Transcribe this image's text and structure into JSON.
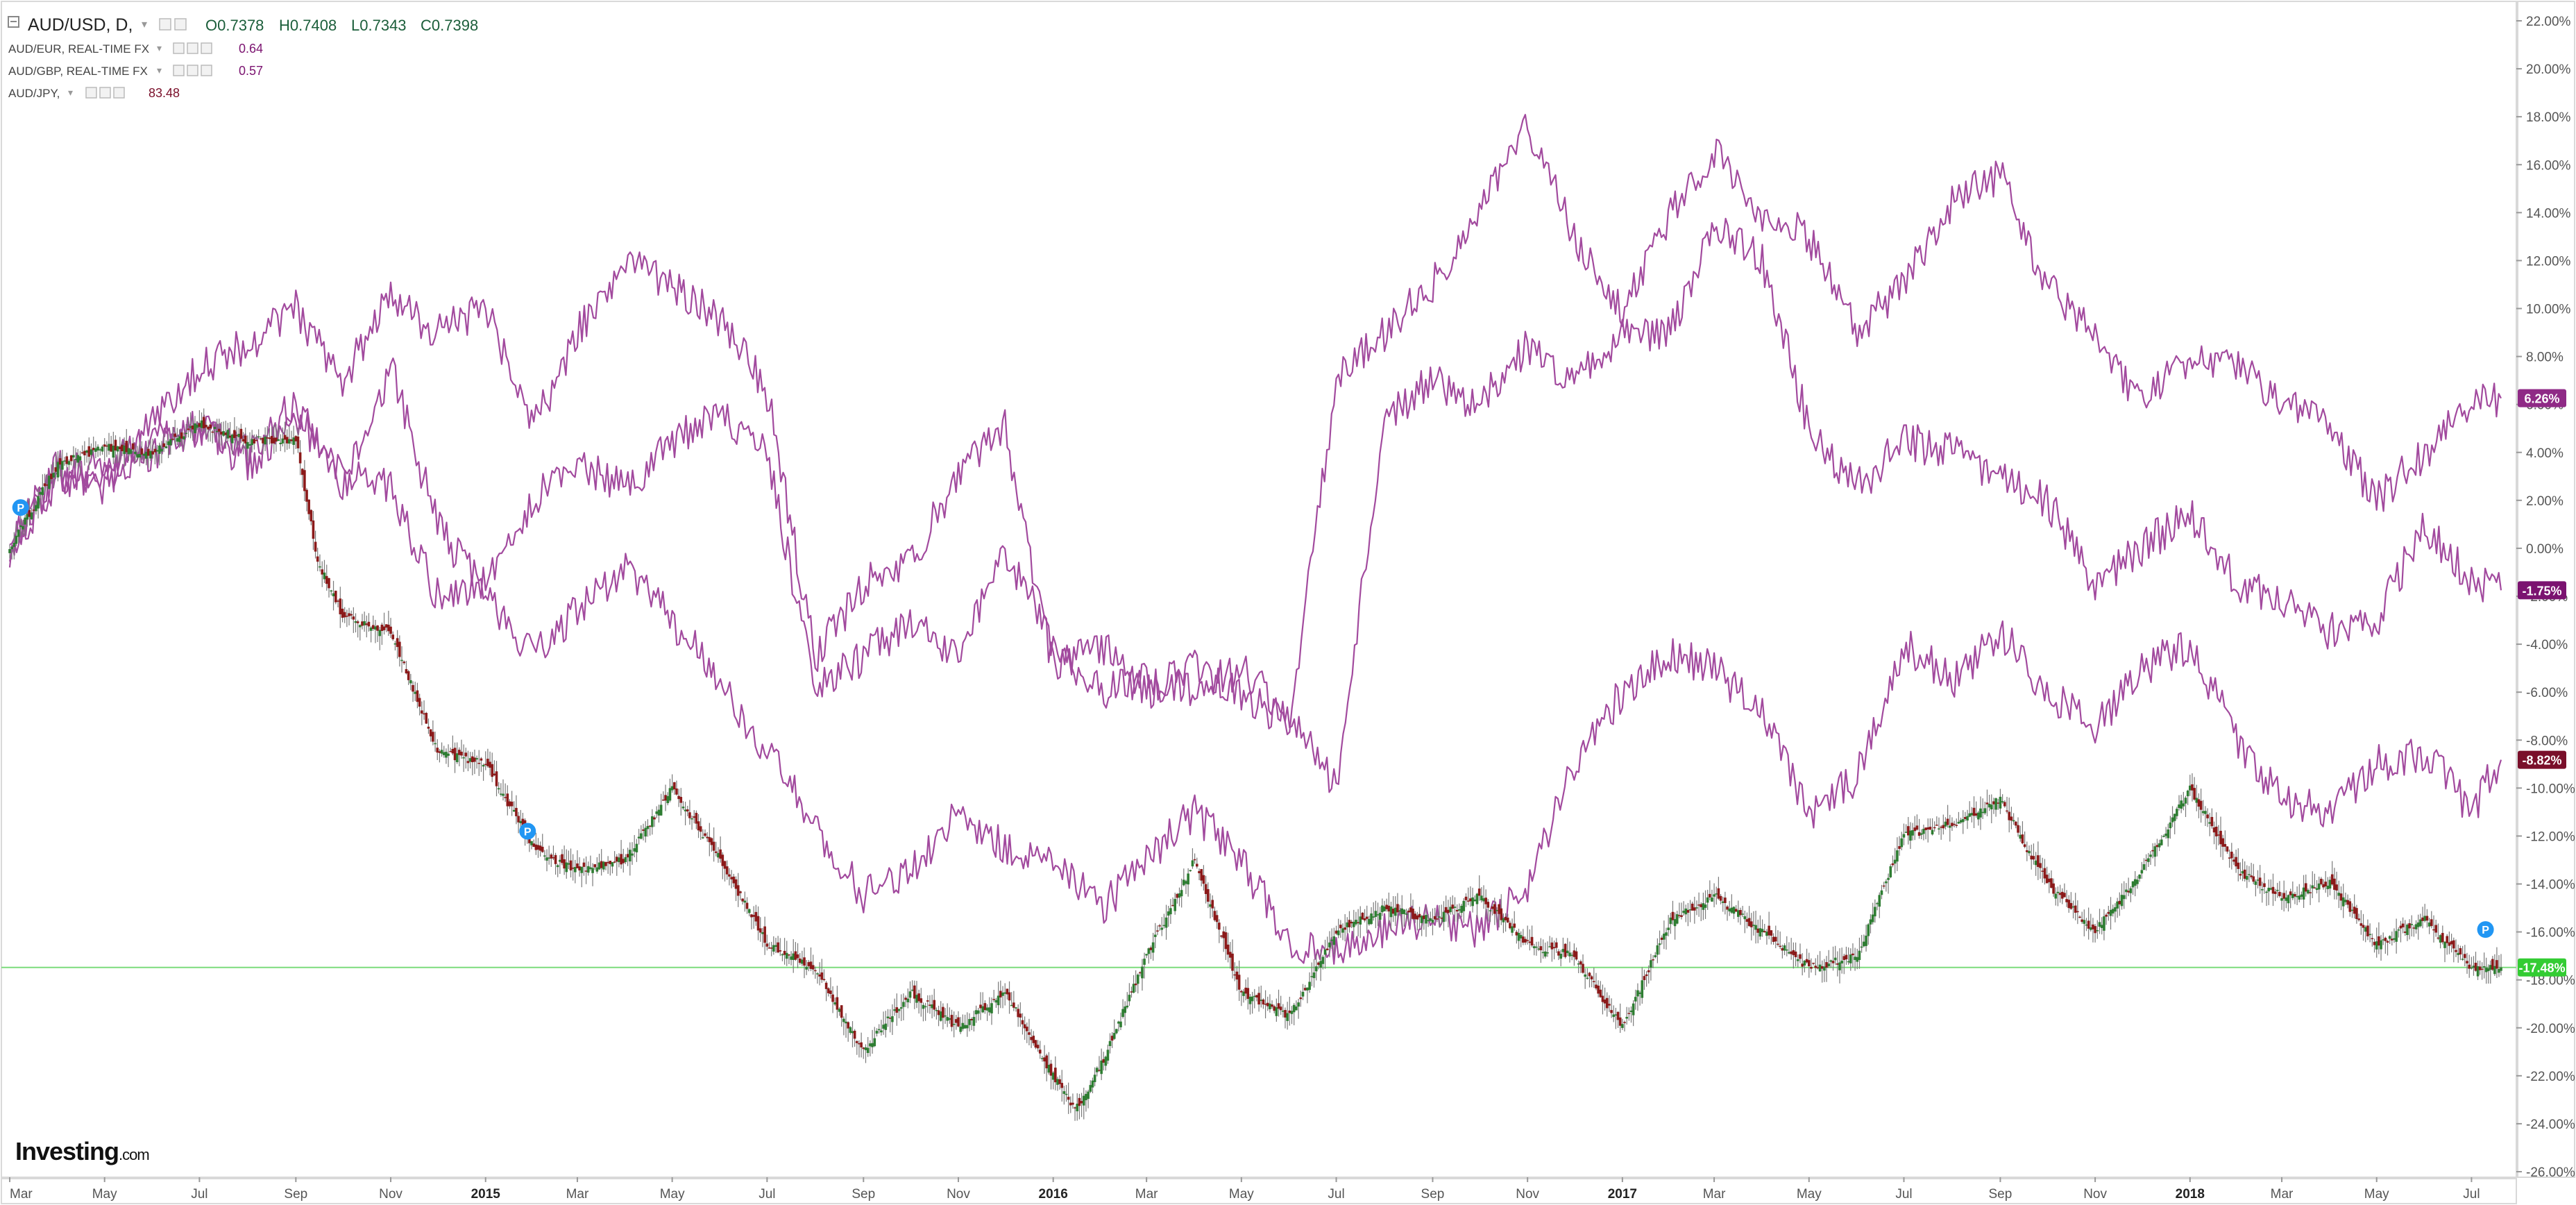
{
  "legend": {
    "main": {
      "symbol": "AUD/USD, D,",
      "open_label": "O",
      "open": "0.7378",
      "high_label": "H",
      "high": "0.7408",
      "low_label": "L",
      "low": "0.7343",
      "close_label": "C",
      "close": "0.7398"
    },
    "compare": [
      {
        "name": "AUD/EUR, REAL-TIME FX",
        "value": "0.64"
      },
      {
        "name": "AUD/GBP, REAL-TIME FX",
        "value": "0.57"
      },
      {
        "name": "AUD/JPY,",
        "value": "83.48"
      }
    ]
  },
  "logo": {
    "brand": "Investing",
    "suffix": ".com"
  },
  "marker_label": "P",
  "colors": {
    "up_candle": "#2e7d32",
    "down_candle": "#8b1a1a",
    "compare_line": "#a24a9e",
    "last_price_line": "#7cdc7c",
    "badge_green": "#33cc33",
    "badge_purple": "#7b1370",
    "badge_purple_light": "#8f2a86",
    "badge_maroon": "#7a0f2a",
    "axis_text": "#555555"
  },
  "chart_data": {
    "type": "line",
    "title": "",
    "percent_scale": true,
    "ylim": [
      -26,
      22
    ],
    "yticks": [
      "22.00%",
      "20.00%",
      "18.00%",
      "16.00%",
      "14.00%",
      "12.00%",
      "10.00%",
      "8.00%",
      "6.00%",
      "4.00%",
      "2.00%",
      "0.00%",
      "-2.00%",
      "-4.00%",
      "-6.00%",
      "-8.00%",
      "-10.00%",
      "-12.00%",
      "-14.00%",
      "-16.00%",
      "-18.00%",
      "-20.00%",
      "-22.00%",
      "-24.00%",
      "-26.00%"
    ],
    "xticks": [
      "Mar",
      "May",
      "Jul",
      "Sep",
      "Nov",
      "2015",
      "Mar",
      "May",
      "Jul",
      "Sep",
      "Nov",
      "2016",
      "Mar",
      "May",
      "Jul",
      "Sep",
      "Nov",
      "2017",
      "Mar",
      "May",
      "Jul",
      "Sep",
      "Nov",
      "2018",
      "Mar",
      "May",
      "Jul"
    ],
    "xrange": [
      "2014-03-01",
      "2018-07-20"
    ],
    "grid": false,
    "series": [
      {
        "name": "AUD/USD",
        "style": "candlestick",
        "last_label": "-17.48%",
        "x": [
          "2014-03-01",
          "2014-04-01",
          "2014-05-01",
          "2014-06-01",
          "2014-07-01",
          "2014-08-01",
          "2014-09-01",
          "2014-09-15",
          "2014-10-01",
          "2014-11-01",
          "2014-12-01",
          "2015-01-01",
          "2015-02-01",
          "2015-03-01",
          "2015-04-01",
          "2015-05-01",
          "2015-06-01",
          "2015-07-01",
          "2015-08-01",
          "2015-09-01",
          "2015-10-01",
          "2015-11-01",
          "2015-12-01",
          "2016-01-01",
          "2016-01-15",
          "2016-02-01",
          "2016-03-01",
          "2016-04-01",
          "2016-05-01",
          "2016-06-01",
          "2016-07-01",
          "2016-08-01",
          "2016-09-01",
          "2016-10-01",
          "2016-11-01",
          "2016-12-01",
          "2017-01-01",
          "2017-02-01",
          "2017-03-01",
          "2017-04-01",
          "2017-05-01",
          "2017-06-01",
          "2017-07-01",
          "2017-08-01",
          "2017-09-01",
          "2017-10-01",
          "2017-11-01",
          "2017-12-01",
          "2018-01-01",
          "2018-02-01",
          "2018-03-01",
          "2018-04-01",
          "2018-05-01",
          "2018-06-01",
          "2018-07-01",
          "2018-07-20"
        ],
        "values": [
          0.0,
          3.5,
          4.2,
          4.0,
          5.2,
          4.5,
          4.5,
          -0.5,
          -2.8,
          -3.5,
          -8.5,
          -9.0,
          -12.5,
          -13.5,
          -13.0,
          -10.0,
          -13.0,
          -16.5,
          -17.5,
          -21.0,
          -18.5,
          -20.0,
          -18.5,
          -22.0,
          -23.5,
          -21.5,
          -17.0,
          -13.0,
          -18.5,
          -19.5,
          -16.0,
          -15.0,
          -15.5,
          -14.5,
          -16.5,
          -17.0,
          -20.0,
          -15.5,
          -14.5,
          -16.0,
          -17.5,
          -17.0,
          -12.0,
          -11.5,
          -10.5,
          -14.0,
          -16.0,
          -13.5,
          -10.0,
          -13.5,
          -14.5,
          -14.0,
          -16.5,
          -15.5,
          -17.5,
          -17.48
        ]
      },
      {
        "name": "AUD/EUR",
        "style": "line",
        "last_label": "6.26%",
        "x": [
          "2014-03-01",
          "2014-04-01",
          "2014-05-01",
          "2014-06-01",
          "2014-07-01",
          "2014-08-01",
          "2014-09-01",
          "2014-10-01",
          "2014-11-01",
          "2014-12-01",
          "2015-01-01",
          "2015-02-01",
          "2015-03-01",
          "2015-04-01",
          "2015-05-01",
          "2015-06-01",
          "2015-07-01",
          "2015-08-01",
          "2015-09-01",
          "2015-10-01",
          "2015-11-01",
          "2015-12-01",
          "2016-01-01",
          "2016-02-01",
          "2016-03-01",
          "2016-04-01",
          "2016-05-01",
          "2016-06-01",
          "2016-07-01",
          "2016-08-01",
          "2016-09-01",
          "2016-10-01",
          "2016-11-01",
          "2016-12-01",
          "2017-01-01",
          "2017-02-01",
          "2017-03-01",
          "2017-04-01",
          "2017-05-01",
          "2017-06-01",
          "2017-07-01",
          "2017-08-01",
          "2017-09-01",
          "2017-10-01",
          "2017-11-01",
          "2017-12-01",
          "2018-01-01",
          "2018-02-01",
          "2018-03-01",
          "2018-04-01",
          "2018-05-01",
          "2018-06-01",
          "2018-07-01",
          "2018-07-20"
        ],
        "values": [
          0.0,
          3.5,
          2.5,
          5.5,
          7.5,
          8.5,
          10.0,
          7.0,
          10.5,
          9.0,
          10.0,
          5.0,
          9.0,
          12.0,
          11.0,
          9.5,
          6.5,
          -4.5,
          -1.5,
          -0.5,
          3.0,
          5.0,
          -5.0,
          -4.0,
          -6.0,
          -5.0,
          -6.0,
          -7.5,
          7.0,
          9.0,
          11.0,
          14.0,
          17.5,
          13.0,
          10.0,
          14.0,
          16.5,
          14.0,
          13.0,
          9.0,
          11.0,
          14.5,
          15.5,
          11.0,
          9.0,
          6.0,
          8.0,
          7.5,
          6.0,
          5.0,
          2.0,
          4.0,
          6.0,
          6.26
        ]
      },
      {
        "name": "AUD/GBP",
        "style": "line",
        "last_label": "-1.75%",
        "x": [
          "2014-03-01",
          "2014-04-01",
          "2014-05-01",
          "2014-06-01",
          "2014-07-01",
          "2014-08-01",
          "2014-09-01",
          "2014-10-01",
          "2014-11-01",
          "2014-12-01",
          "2015-01-01",
          "2015-02-01",
          "2015-03-01",
          "2015-04-01",
          "2015-05-01",
          "2015-06-01",
          "2015-07-01",
          "2015-08-01",
          "2015-09-01",
          "2015-10-01",
          "2015-11-01",
          "2015-12-01",
          "2016-01-01",
          "2016-02-01",
          "2016-03-01",
          "2016-04-01",
          "2016-05-01",
          "2016-06-01",
          "2016-07-01",
          "2016-08-01",
          "2016-09-01",
          "2016-10-01",
          "2016-11-01",
          "2016-12-01",
          "2017-01-01",
          "2017-02-01",
          "2017-03-01",
          "2017-04-01",
          "2017-05-01",
          "2017-06-01",
          "2017-07-01",
          "2017-08-01",
          "2017-09-01",
          "2017-10-01",
          "2017-11-01",
          "2017-12-01",
          "2018-01-01",
          "2018-02-01",
          "2018-03-01",
          "2018-04-01",
          "2018-05-01",
          "2018-06-01",
          "2018-07-01",
          "2018-07-20"
        ],
        "values": [
          0.0,
          3.0,
          2.8,
          4.0,
          5.0,
          3.5,
          5.5,
          3.0,
          2.5,
          -2.0,
          -1.5,
          2.0,
          3.5,
          2.5,
          4.5,
          5.5,
          4.0,
          -6.0,
          -4.5,
          -3.0,
          -4.5,
          0.0,
          -4.0,
          -6.0,
          -5.5,
          -6.0,
          -5.0,
          -7.0,
          -10.0,
          5.5,
          7.0,
          6.0,
          8.5,
          7.0,
          9.0,
          9.0,
          13.5,
          12.0,
          5.0,
          2.5,
          4.5,
          4.0,
          3.0,
          2.0,
          -1.5,
          0.0,
          1.5,
          -1.5,
          -2.0,
          -3.5,
          -3.0,
          1.0,
          -1.5,
          -1.75
        ]
      },
      {
        "name": "AUD/JPY",
        "style": "line",
        "last_label": "-8.82%",
        "x": [
          "2014-03-01",
          "2014-04-01",
          "2014-05-01",
          "2014-06-01",
          "2014-07-01",
          "2014-08-01",
          "2014-09-01",
          "2014-10-01",
          "2014-11-01",
          "2014-12-01",
          "2015-01-01",
          "2015-02-01",
          "2015-03-01",
          "2015-04-01",
          "2015-05-01",
          "2015-06-01",
          "2015-07-01",
          "2015-08-01",
          "2015-09-01",
          "2015-10-01",
          "2015-11-01",
          "2015-12-01",
          "2016-01-01",
          "2016-02-01",
          "2016-03-01",
          "2016-04-01",
          "2016-05-01",
          "2016-06-01",
          "2016-07-01",
          "2016-08-01",
          "2016-09-01",
          "2016-10-01",
          "2016-11-01",
          "2016-12-01",
          "2017-01-01",
          "2017-02-01",
          "2017-03-01",
          "2017-04-01",
          "2017-05-01",
          "2017-06-01",
          "2017-07-01",
          "2017-08-01",
          "2017-09-01",
          "2017-10-01",
          "2017-11-01",
          "2017-12-01",
          "2018-01-01",
          "2018-02-01",
          "2018-03-01",
          "2018-04-01",
          "2018-05-01",
          "2018-06-01",
          "2018-07-01",
          "2018-07-20"
        ],
        "values": [
          0.0,
          3.0,
          3.5,
          4.5,
          5.0,
          4.0,
          6.0,
          2.5,
          7.5,
          1.0,
          -2.0,
          -4.5,
          -2.5,
          -1.0,
          -3.0,
          -5.5,
          -8.5,
          -11.5,
          -14.5,
          -13.5,
          -11.0,
          -12.5,
          -13.0,
          -15.0,
          -13.0,
          -11.0,
          -13.0,
          -16.5,
          -17.0,
          -16.0,
          -15.5,
          -16.0,
          -14.0,
          -9.0,
          -6.0,
          -4.5,
          -5.0,
          -7.0,
          -11.0,
          -9.5,
          -4.0,
          -5.5,
          -3.5,
          -6.0,
          -7.5,
          -5.0,
          -4.0,
          -8.0,
          -10.5,
          -11.0,
          -9.0,
          -8.5,
          -11.0,
          -8.82
        ]
      }
    ]
  }
}
